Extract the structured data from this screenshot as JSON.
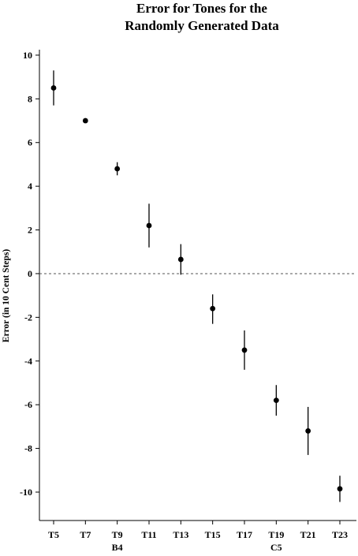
{
  "chart_data": {
    "type": "scatter",
    "title": [
      "Error for Tones for the",
      "Randomly Generated Data"
    ],
    "xlabel": "",
    "ylabel": "Error (in 10 Cent Steps)",
    "categories": [
      "T5",
      "T7",
      "T9",
      "T11",
      "T13",
      "T15",
      "T17",
      "T19",
      "T21",
      "T23"
    ],
    "category_sublabels": [
      {
        "category": "T9",
        "label": "B4"
      },
      {
        "category": "T19",
        "label": "C5"
      }
    ],
    "series": [
      {
        "values": [
          8.5,
          7.0,
          4.8,
          2.2,
          0.65,
          -1.6,
          -3.5,
          -5.8,
          -7.2,
          -9.85
        ],
        "error_low": [
          7.7,
          7.0,
          4.5,
          1.2,
          -0.05,
          -2.3,
          -4.4,
          -6.5,
          -8.3,
          -10.45
        ],
        "error_high": [
          9.3,
          7.0,
          5.1,
          3.2,
          1.35,
          -0.95,
          -2.6,
          -5.1,
          -6.1,
          -9.25
        ]
      }
    ],
    "yticks": [
      10,
      8,
      6,
      4,
      2,
      0,
      -2,
      -4,
      -6,
      -8,
      -10
    ],
    "ylim": [
      -11.3,
      10.25
    ],
    "reference_line": {
      "y": 0,
      "style": "dashed"
    },
    "grid": false,
    "colors": {
      "marker": "#000000",
      "reference_line": "#555555"
    }
  }
}
